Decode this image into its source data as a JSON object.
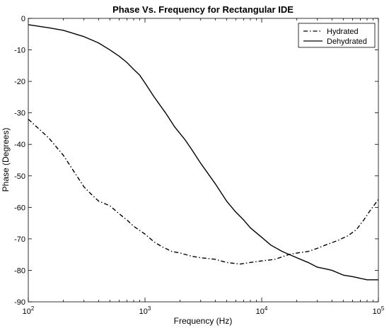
{
  "chart_data": {
    "type": "line",
    "title": "Phase Vs. Frequency for Rectangular IDE",
    "xlabel": "Frequency (Hz)",
    "ylabel": "Phase (Degrees)",
    "xscale": "log",
    "xlim": [
      100,
      100000
    ],
    "ylim": [
      -90,
      0
    ],
    "x_ticks": [
      {
        "base": "10",
        "exp": "2"
      },
      {
        "base": "10",
        "exp": "3"
      },
      {
        "base": "10",
        "exp": "4"
      },
      {
        "base": "10",
        "exp": "5"
      }
    ],
    "y_ticks": [
      "0",
      "-10",
      "-20",
      "-30",
      "-40",
      "-50",
      "-60",
      "-70",
      "-80",
      "-90"
    ],
    "grid": false,
    "legend_position": "top-right",
    "series": [
      {
        "name": "Hydrated",
        "style": "dashdot",
        "color": "#000000",
        "points": [
          [
            100,
            -32
          ],
          [
            150,
            -38
          ],
          [
            200,
            -43.5
          ],
          [
            250,
            -49
          ],
          [
            300,
            -53.5
          ],
          [
            350,
            -56
          ],
          [
            400,
            -58
          ],
          [
            500,
            -59.5
          ],
          [
            600,
            -62
          ],
          [
            700,
            -64
          ],
          [
            800,
            -66
          ],
          [
            1000,
            -68.5
          ],
          [
            1200,
            -71
          ],
          [
            1400,
            -72.5
          ],
          [
            1700,
            -74
          ],
          [
            2000,
            -74.5
          ],
          [
            2500,
            -75.5
          ],
          [
            3000,
            -76
          ],
          [
            4000,
            -76.5
          ],
          [
            5000,
            -77.5
          ],
          [
            6500,
            -78
          ],
          [
            8000,
            -77.5
          ],
          [
            10000,
            -77
          ],
          [
            13000,
            -76.5
          ],
          [
            17000,
            -75
          ],
          [
            20000,
            -74.5
          ],
          [
            25000,
            -74
          ],
          [
            30000,
            -73
          ],
          [
            35000,
            -72
          ],
          [
            45000,
            -70.5
          ],
          [
            55000,
            -69
          ],
          [
            65000,
            -67
          ],
          [
            75000,
            -64
          ],
          [
            85000,
            -61
          ],
          [
            100000,
            -57.5
          ]
        ]
      },
      {
        "name": "Dehydrated",
        "style": "solid",
        "color": "#000000",
        "points": [
          [
            100,
            -2
          ],
          [
            150,
            -3
          ],
          [
            200,
            -3.8
          ],
          [
            300,
            -5.8
          ],
          [
            400,
            -7.8
          ],
          [
            500,
            -10
          ],
          [
            600,
            -12
          ],
          [
            700,
            -14
          ],
          [
            800,
            -16.2
          ],
          [
            900,
            -18
          ],
          [
            1000,
            -20.5
          ],
          [
            1200,
            -25
          ],
          [
            1500,
            -30
          ],
          [
            1800,
            -34.5
          ],
          [
            2200,
            -38.5
          ],
          [
            2500,
            -41.5
          ],
          [
            3000,
            -46
          ],
          [
            4000,
            -52.5
          ],
          [
            5000,
            -58
          ],
          [
            6000,
            -61.5
          ],
          [
            7000,
            -64
          ],
          [
            8000,
            -66.5
          ],
          [
            10000,
            -69.5
          ],
          [
            12000,
            -72
          ],
          [
            15000,
            -74
          ],
          [
            20000,
            -76
          ],
          [
            25000,
            -77.5
          ],
          [
            30000,
            -79
          ],
          [
            35000,
            -79.5
          ],
          [
            40000,
            -80
          ],
          [
            50000,
            -81.5
          ],
          [
            60000,
            -82
          ],
          [
            80000,
            -83
          ],
          [
            100000,
            -83
          ]
        ]
      }
    ]
  }
}
